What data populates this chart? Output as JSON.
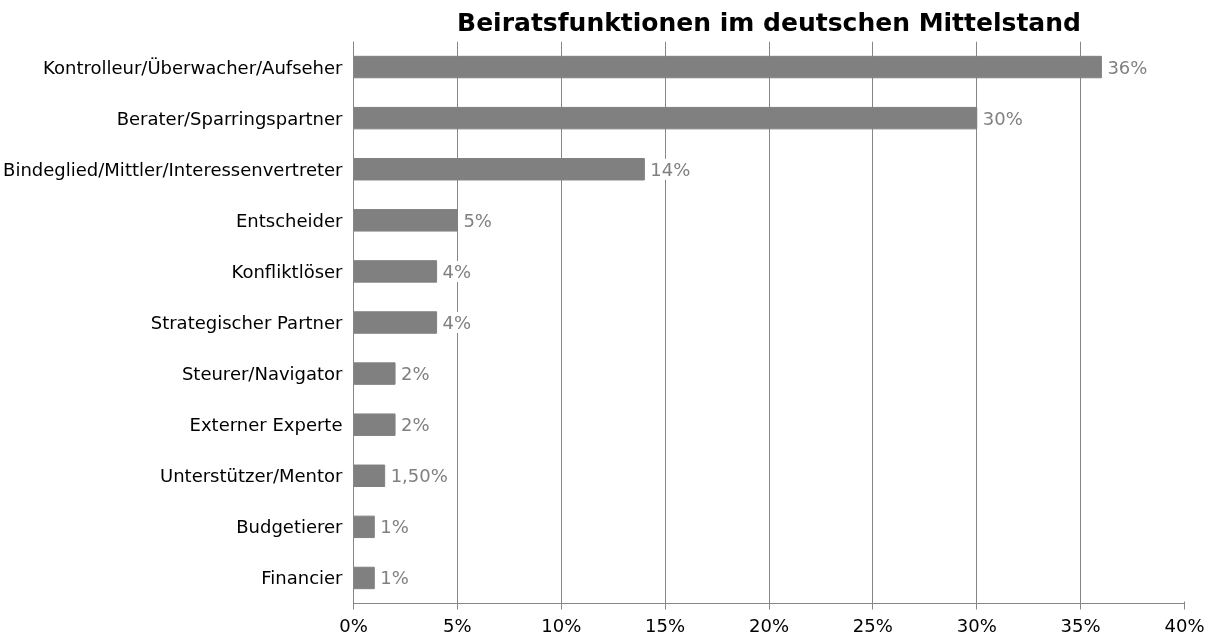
{
  "chart_data": {
    "type": "bar",
    "orientation": "horizontal",
    "title": "Beiratsfunktionen im deutschen Mittelstand",
    "categories": [
      "Kontrolleur/Überwacher/Aufseher",
      "Berater/Sparringspartner",
      "Bindeglied/Mittler/Interessenvertreter",
      "Entscheider",
      "Konfliktlöser",
      "Strategischer Partner",
      "Steurer/Navigator",
      "Externer Experte",
      "Unterstützer/Mentor",
      "Budgetierer",
      "Financier"
    ],
    "values": [
      36,
      30,
      14,
      5,
      4,
      4,
      2,
      2,
      1.5,
      1,
      1
    ],
    "value_labels": [
      "36%",
      "30%",
      "14%",
      "5%",
      "4%",
      "4%",
      "2%",
      "2%",
      "1,50%",
      "1%",
      "1%"
    ],
    "color": "#808080",
    "xlim": [
      0,
      40
    ],
    "xticks": [
      {
        "value": 0,
        "label": "0%"
      },
      {
        "value": 5,
        "label": "5%"
      },
      {
        "value": 10,
        "label": "10%"
      },
      {
        "value": 15,
        "label": "15%"
      },
      {
        "value": 20,
        "label": "20%"
      },
      {
        "value": 25,
        "label": "25%"
      },
      {
        "value": 30,
        "label": "30%"
      },
      {
        "value": 35,
        "label": "35%"
      },
      {
        "value": 40,
        "label": "40%"
      }
    ],
    "grid": "x"
  }
}
